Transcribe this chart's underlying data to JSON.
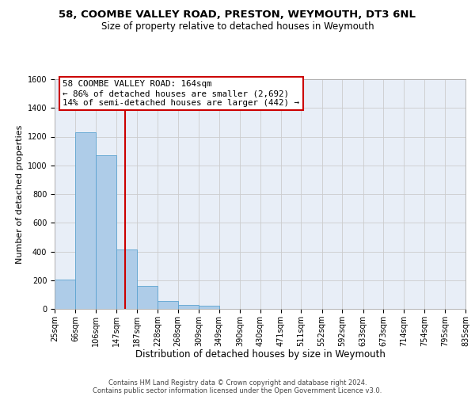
{
  "title1": "58, COOMBE VALLEY ROAD, PRESTON, WEYMOUTH, DT3 6NL",
  "title2": "Size of property relative to detached houses in Weymouth",
  "xlabel": "Distribution of detached houses by size in Weymouth",
  "ylabel": "Number of detached properties",
  "footer1": "Contains HM Land Registry data © Crown copyright and database right 2024.",
  "footer2": "Contains public sector information licensed under the Open Government Licence v3.0.",
  "annotation_line1": "58 COOMBE VALLEY ROAD: 164sqm",
  "annotation_line2": "← 86% of detached houses are smaller (2,692)",
  "annotation_line3": "14% of semi-detached houses are larger (442) →",
  "bar_edges": [
    25,
    66,
    106,
    147,
    187,
    228,
    268,
    309,
    349,
    390,
    430,
    471,
    511,
    552,
    592,
    633,
    673,
    714,
    754,
    795,
    835
  ],
  "bar_heights": [
    205,
    1230,
    1070,
    415,
    160,
    55,
    25,
    20,
    0,
    0,
    0,
    0,
    0,
    0,
    0,
    0,
    0,
    0,
    0,
    0
  ],
  "bar_color": "#aecce8",
  "bar_edgecolor": "#5ba3d0",
  "property_line_x": 164,
  "property_line_color": "#cc0000",
  "annotation_box_edgecolor": "#cc0000",
  "ylim": [
    0,
    1600
  ],
  "yticks": [
    0,
    200,
    400,
    600,
    800,
    1000,
    1200,
    1400,
    1600
  ],
  "grid_color": "#cccccc",
  "bg_color": "#e8eef7",
  "title1_fontsize": 9.5,
  "title2_fontsize": 8.5,
  "xlabel_fontsize": 8.5,
  "ylabel_fontsize": 8.0,
  "tick_fontsize": 7.0,
  "annotation_fontsize": 7.8,
  "footer_fontsize": 6.0
}
